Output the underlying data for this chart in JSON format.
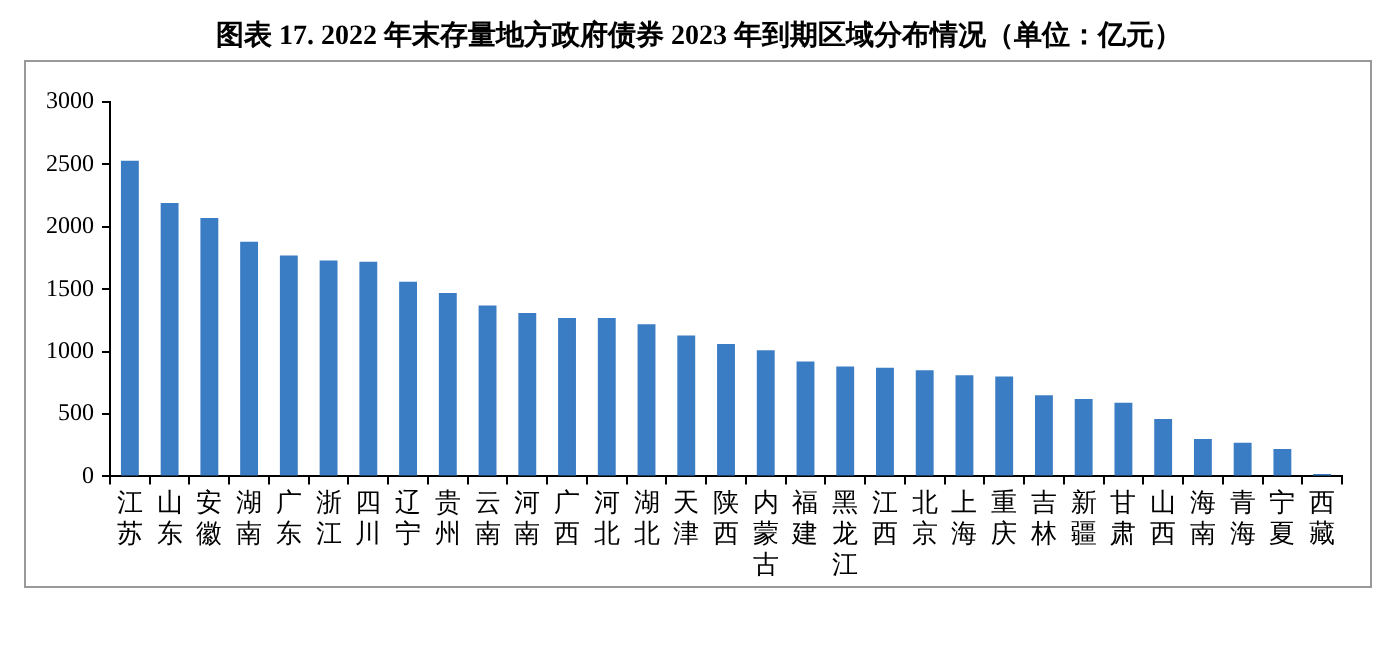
{
  "chart_data": {
    "type": "bar",
    "title": "图表 17. 2022 年末存量地方政府债券 2023 年到期区域分布情况（单位：亿元）",
    "categories": [
      "江苏",
      "山东",
      "安徽",
      "湖南",
      "广东",
      "浙江",
      "四川",
      "辽宁",
      "贵州",
      "云南",
      "河南",
      "广西",
      "河北",
      "湖北",
      "天津",
      "陕西",
      "内蒙古",
      "福建",
      "黑龙江",
      "江西",
      "北京",
      "上海",
      "重庆",
      "吉林",
      "新疆",
      "甘肃",
      "山西",
      "海南",
      "青海",
      "宁夏",
      "西藏"
    ],
    "values": [
      2530,
      2190,
      2070,
      1880,
      1770,
      1730,
      1720,
      1560,
      1470,
      1370,
      1310,
      1270,
      1270,
      1220,
      1130,
      1060,
      1010,
      920,
      880,
      870,
      850,
      810,
      800,
      650,
      620,
      590,
      460,
      300,
      270,
      220,
      20
    ],
    "color": "#3b7dc4",
    "ylim": [
      0,
      3000
    ],
    "yticks": [
      0,
      500,
      1000,
      1500,
      2000,
      2500,
      3000
    ],
    "grid": false,
    "legend": false
  }
}
